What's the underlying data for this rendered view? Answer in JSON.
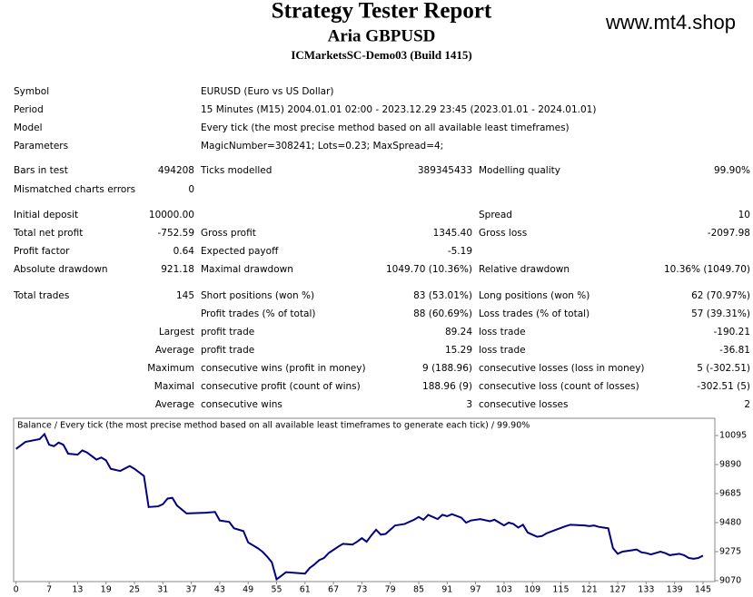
{
  "header": {
    "title": "Strategy Tester Report",
    "subtitle": "Aria GBPUSD",
    "server": "ICMarketsSC-Demo03 (Build 1415)",
    "watermark": "www.mt4.shop"
  },
  "table": {
    "rows": [
      {
        "label": "Symbol",
        "text": "EURUSD (Euro vs US Dollar)"
      },
      {
        "label": "Period",
        "text": "15 Minutes (M15) 2004.01.01 02:00 - 2023.12.29 23:45 (2023.01.01 - 2024.01.01)"
      },
      {
        "label": "Model",
        "text": "Every tick (the most precise method based on all available least timeframes)"
      },
      {
        "label": "Parameters",
        "text": "MagicNumber=308241; Lots=0.23; MaxSpread=4;"
      },
      {
        "label": "Bars in test",
        "value": "494208",
        "label2": "Ticks modelled",
        "value2": "389345433",
        "label3": "Modelling quality",
        "value3": "99.90%"
      },
      {
        "label": "Mismatched charts errors",
        "value": "0"
      },
      {
        "label": "Initial deposit",
        "value": "10000.00",
        "label3": "Spread",
        "value3": "10"
      },
      {
        "label": "Total net profit",
        "value": "-752.59",
        "label2": "Gross profit",
        "value2": "1345.40",
        "label3": "Gross loss",
        "value3": "-2097.98"
      },
      {
        "label": "Profit factor",
        "value": "0.64",
        "label2": "Expected payoff",
        "value2": "-5.19"
      },
      {
        "label": "Absolute drawdown",
        "value": "921.18",
        "label2": "Maximal drawdown",
        "value2": "1049.70 (10.36%)",
        "label3": "Relative drawdown",
        "value3": "10.36% (1049.70)"
      },
      {
        "label": "Total trades",
        "value": "145",
        "label2": "Short positions (won %)",
        "value2": "83 (53.01%)",
        "label3": "Long positions (won %)",
        "value3": "62 (70.97%)"
      },
      {
        "label2": "Profit trades (% of total)",
        "value2": "88 (60.69%)",
        "label3": "Loss trades (% of total)",
        "value3": "57 (39.31%)"
      },
      {
        "value": "Largest",
        "label2": "profit trade",
        "value2": "89.24",
        "label3": "loss trade",
        "value3": "-190.21"
      },
      {
        "value": "Average",
        "label2": "profit trade",
        "value2": "15.29",
        "label3": "loss trade",
        "value3": "-36.81"
      },
      {
        "value": "Maximum",
        "label2": "consecutive wins (profit in money)",
        "value2": "9 (188.96)",
        "label3": "consecutive losses (loss in money)",
        "value3": "5 (-302.51)"
      },
      {
        "value": "Maximal",
        "label2": "consecutive profit (count of wins)",
        "value2": "188.96 (9)",
        "label3": "consecutive loss (count of losses)",
        "value3": "-302.51 (5)"
      },
      {
        "value": "Average",
        "label2": "consecutive wins",
        "value2": "3",
        "label3": "consecutive losses",
        "value3": "2"
      }
    ]
  },
  "chart_data": {
    "type": "line",
    "title": "Balance / Every tick (the most precise method based on all available least timeframes to generate each tick) / 99.90%",
    "color": "#000080",
    "grid": false,
    "x": [
      0,
      2,
      5,
      6,
      7,
      8,
      9,
      10,
      11,
      13,
      14,
      15,
      17,
      18,
      19,
      20,
      22,
      24,
      25,
      27,
      28,
      30,
      31,
      32,
      33,
      34,
      36,
      40,
      42,
      43,
      45,
      46,
      48,
      49,
      51,
      52,
      53,
      54,
      55,
      57,
      61,
      62,
      63,
      64,
      65,
      66,
      68,
      69,
      71,
      72,
      73,
      74,
      75,
      76,
      77,
      78,
      79,
      80,
      82,
      84,
      85,
      86,
      87,
      89,
      90,
      91,
      92,
      94,
      95,
      96,
      98,
      100,
      101,
      102,
      103,
      104,
      105,
      106,
      107,
      108,
      109,
      110,
      111,
      112,
      114,
      116,
      117,
      120,
      121,
      122,
      123,
      124,
      125,
      126,
      127,
      128,
      130,
      131,
      132,
      133,
      134,
      135,
      136,
      137,
      138,
      139,
      140,
      141,
      142,
      143,
      144,
      145
    ],
    "values": [
      10000,
      10050,
      10070,
      10105,
      10030,
      10020,
      10045,
      10030,
      9967,
      9960,
      9990,
      9975,
      9925,
      9940,
      9920,
      9860,
      9845,
      9880,
      9860,
      9810,
      9590,
      9595,
      9610,
      9650,
      9655,
      9600,
      9545,
      9550,
      9555,
      9495,
      9485,
      9440,
      9420,
      9340,
      9300,
      9275,
      9240,
      9200,
      9079,
      9130,
      9120,
      9160,
      9185,
      9215,
      9230,
      9265,
      9310,
      9330,
      9325,
      9345,
      9370,
      9345,
      9390,
      9430,
      9395,
      9400,
      9430,
      9460,
      9470,
      9500,
      9520,
      9500,
      9535,
      9505,
      9535,
      9525,
      9540,
      9515,
      9480,
      9495,
      9505,
      9490,
      9500,
      9480,
      9460,
      9480,
      9470,
      9445,
      9465,
      9410,
      9395,
      9380,
      9385,
      9405,
      9430,
      9455,
      9465,
      9460,
      9455,
      9460,
      9450,
      9445,
      9440,
      9300,
      9260,
      9275,
      9285,
      9290,
      9270,
      9265,
      9255,
      9265,
      9275,
      9265,
      9250,
      9255,
      9260,
      9250,
      9230,
      9225,
      9230,
      9247
    ],
    "xlim": [
      -0.5,
      147.5
    ],
    "xticks": [
      0,
      7,
      13,
      19,
      25,
      31,
      37,
      43,
      49,
      55,
      61,
      67,
      73,
      79,
      85,
      91,
      97,
      103,
      109,
      115,
      121,
      127,
      133,
      139,
      145
    ],
    "ylim": [
      9070,
      10217
    ],
    "yticks": [
      9070,
      9275,
      9480,
      9685,
      9890,
      10095
    ]
  }
}
